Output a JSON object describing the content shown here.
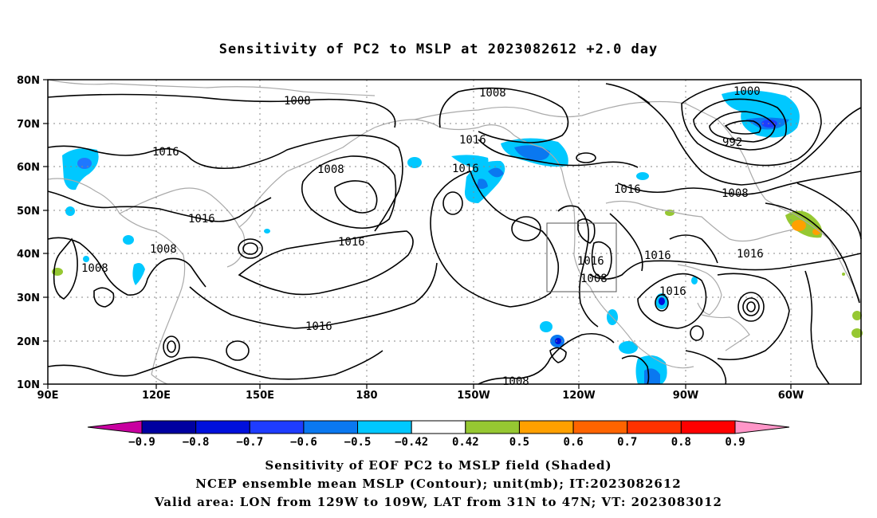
{
  "title": "Sensitivity of PC2 to MSLP at 2023082612 +2.0 day",
  "map": {
    "lon_range": [
      "90E",
      "50W"
    ],
    "lat_range": [
      "10N",
      "80N"
    ],
    "lat_ticks": [
      "80N",
      "70N",
      "60N",
      "50N",
      "40N",
      "30N",
      "20N",
      "10N"
    ],
    "lon_ticks": [
      "90E",
      "120E",
      "150E",
      "180",
      "150W",
      "120W",
      "90W",
      "60W"
    ],
    "gridlines": true,
    "coastline_color": "#aaaaaa",
    "valid_area_box": {
      "lon": [
        "129W",
        "109W"
      ],
      "lat": [
        "31N",
        "47N"
      ]
    }
  },
  "contour_labels": [
    "1008",
    "1016",
    "1008",
    "1016",
    "1016",
    "1008",
    "1000",
    "992",
    "1016",
    "1008",
    "1016",
    "1016",
    "1008",
    "1016",
    "1008",
    "1016",
    "1016",
    "1016",
    "1008",
    "1016",
    "1008"
  ],
  "colorbar": {
    "labels": [
      "−0.9",
      "−0.8",
      "−0.7",
      "−0.6",
      "−0.5",
      "−0.42",
      "0.42",
      "0.5",
      "0.6",
      "0.7",
      "0.8",
      "0.9"
    ],
    "colors": [
      "#c800a0",
      "#0000a0",
      "#0010dc",
      "#1e3cff",
      "#0a78f0",
      "#00c8ff",
      "#ffffff",
      "#96c832",
      "#ffa000",
      "#ff6400",
      "#ff3200",
      "#ff0000",
      "#ff96c8"
    ]
  },
  "caption": [
    "Sensitivity of EOF PC2 to MSLP field (Shaded)",
    "NCEP ensemble mean MSLP (Contour); unit(mb); IT:2023082612",
    "Valid area: LON from 129W to 109W, LAT from 31N to 47N; VT: 2023083012"
  ]
}
